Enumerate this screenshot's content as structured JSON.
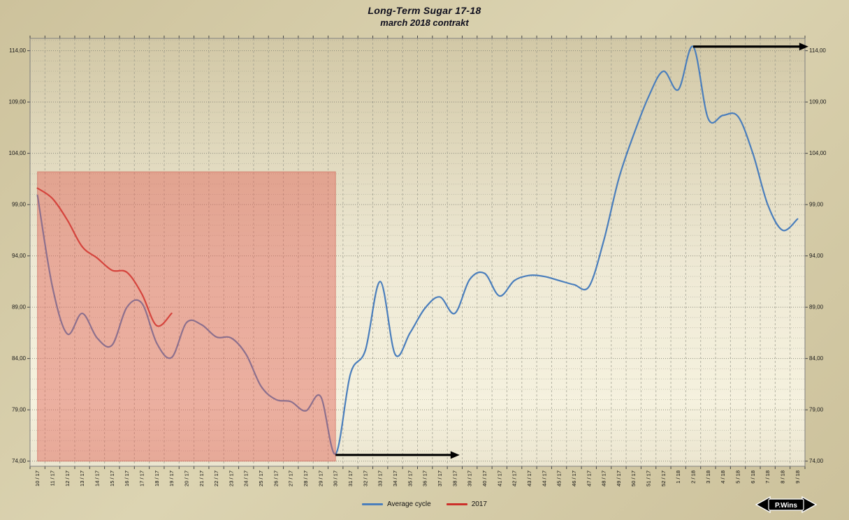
{
  "title": {
    "line1": "Long-Term Sugar 17-18",
    "line2": "march 2018 contrakt"
  },
  "legend": {
    "items": [
      {
        "label": "Average cycle",
        "color": "#4a7ebc"
      },
      {
        "label": "2017",
        "color": "#cc2f2a"
      }
    ]
  },
  "watermark": {
    "text": "P.Wins"
  },
  "chart_data": {
    "type": "line",
    "title": "Long-Term Sugar 17-18 — march 2018 contrakt",
    "xlabel": "",
    "ylabel": "",
    "grid": "both",
    "legend_position": "bottom",
    "ylim": [
      73.5,
      115.2
    ],
    "y_ticks": [
      {
        "value": 74,
        "label": "74,00"
      },
      {
        "value": 79,
        "label": "79,00"
      },
      {
        "value": 84,
        "label": "84,00"
      },
      {
        "value": 89,
        "label": "89,00"
      },
      {
        "value": 94,
        "label": "94,00"
      },
      {
        "value": 99,
        "label": "99,00"
      },
      {
        "value": 104,
        "label": "104,00"
      },
      {
        "value": 109,
        "label": "109,00"
      },
      {
        "value": 114,
        "label": "114,00"
      }
    ],
    "x_labels": [
      "10 / 17",
      "11 / 17",
      "12 / 17",
      "13 / 17",
      "14 / 17",
      "15 / 17",
      "16 / 17",
      "17 / 17",
      "18 / 17",
      "19 / 17",
      "20 / 17",
      "21 / 17",
      "22 / 17",
      "23 / 17",
      "24 / 17",
      "25 / 17",
      "26 / 17",
      "27 / 17",
      "28 / 17",
      "29 / 17",
      "30 / 17",
      "31 / 17",
      "32 / 17",
      "33 / 17",
      "34 / 17",
      "35 / 17",
      "36 / 17",
      "37 / 17",
      "38 / 17",
      "39 / 17",
      "40 / 17",
      "41 / 17",
      "42 / 17",
      "43 / 17",
      "44 / 17",
      "45 / 17",
      "46 / 17",
      "47 / 17",
      "48 / 17",
      "49 / 17",
      "50 / 17",
      "51 / 17",
      "52 / 17",
      "1 / 18",
      "2 / 18",
      "3 / 18",
      "4 / 18",
      "5 / 18",
      "6 / 18",
      "7 / 18",
      "8 / 18",
      "9 / 18"
    ],
    "series": [
      {
        "name": "Average cycle",
        "color": "#4a7ebc",
        "values": [
          99.9,
          91.0,
          86.4,
          88.4,
          86.0,
          85.3,
          89.0,
          89.4,
          85.5,
          84.1,
          87.5,
          87.3,
          86.1,
          86.0,
          84.4,
          81.3,
          80.0,
          79.8,
          78.9,
          80.3,
          74.7,
          82.5,
          84.8,
          91.5,
          84.4,
          86.5,
          88.9,
          90.0,
          88.4,
          91.7,
          92.3,
          90.1,
          91.6,
          92.1,
          92.0,
          91.6,
          91.2,
          91.0,
          95.5,
          101.5,
          105.8,
          109.5,
          112.0,
          110.2,
          114.4,
          107.4,
          107.7,
          107.6,
          104.0,
          99.0,
          96.5,
          97.6
        ]
      },
      {
        "name": "2017",
        "color": "#cc2f2a",
        "values": [
          100.6,
          99.6,
          97.5,
          94.9,
          93.8,
          92.6,
          92.4,
          90.3,
          87.2,
          88.4
        ]
      }
    ],
    "highlight_region": {
      "x_start_label": "10 / 17",
      "x_end_label": "30 / 17",
      "x_start_index": 0,
      "x_end_index": 20,
      "y_bottom": 74.0,
      "y_top": 102.2,
      "fill": "rgba(225,95,85,0.45)",
      "stroke": "rgba(200,85,75,0.55)"
    },
    "arrows": [
      {
        "y": 74.6,
        "x_start_index": 20,
        "x_end_index": 28
      },
      {
        "y": 114.4,
        "x_start_index": 44,
        "x_end_index": 51.4
      }
    ]
  }
}
